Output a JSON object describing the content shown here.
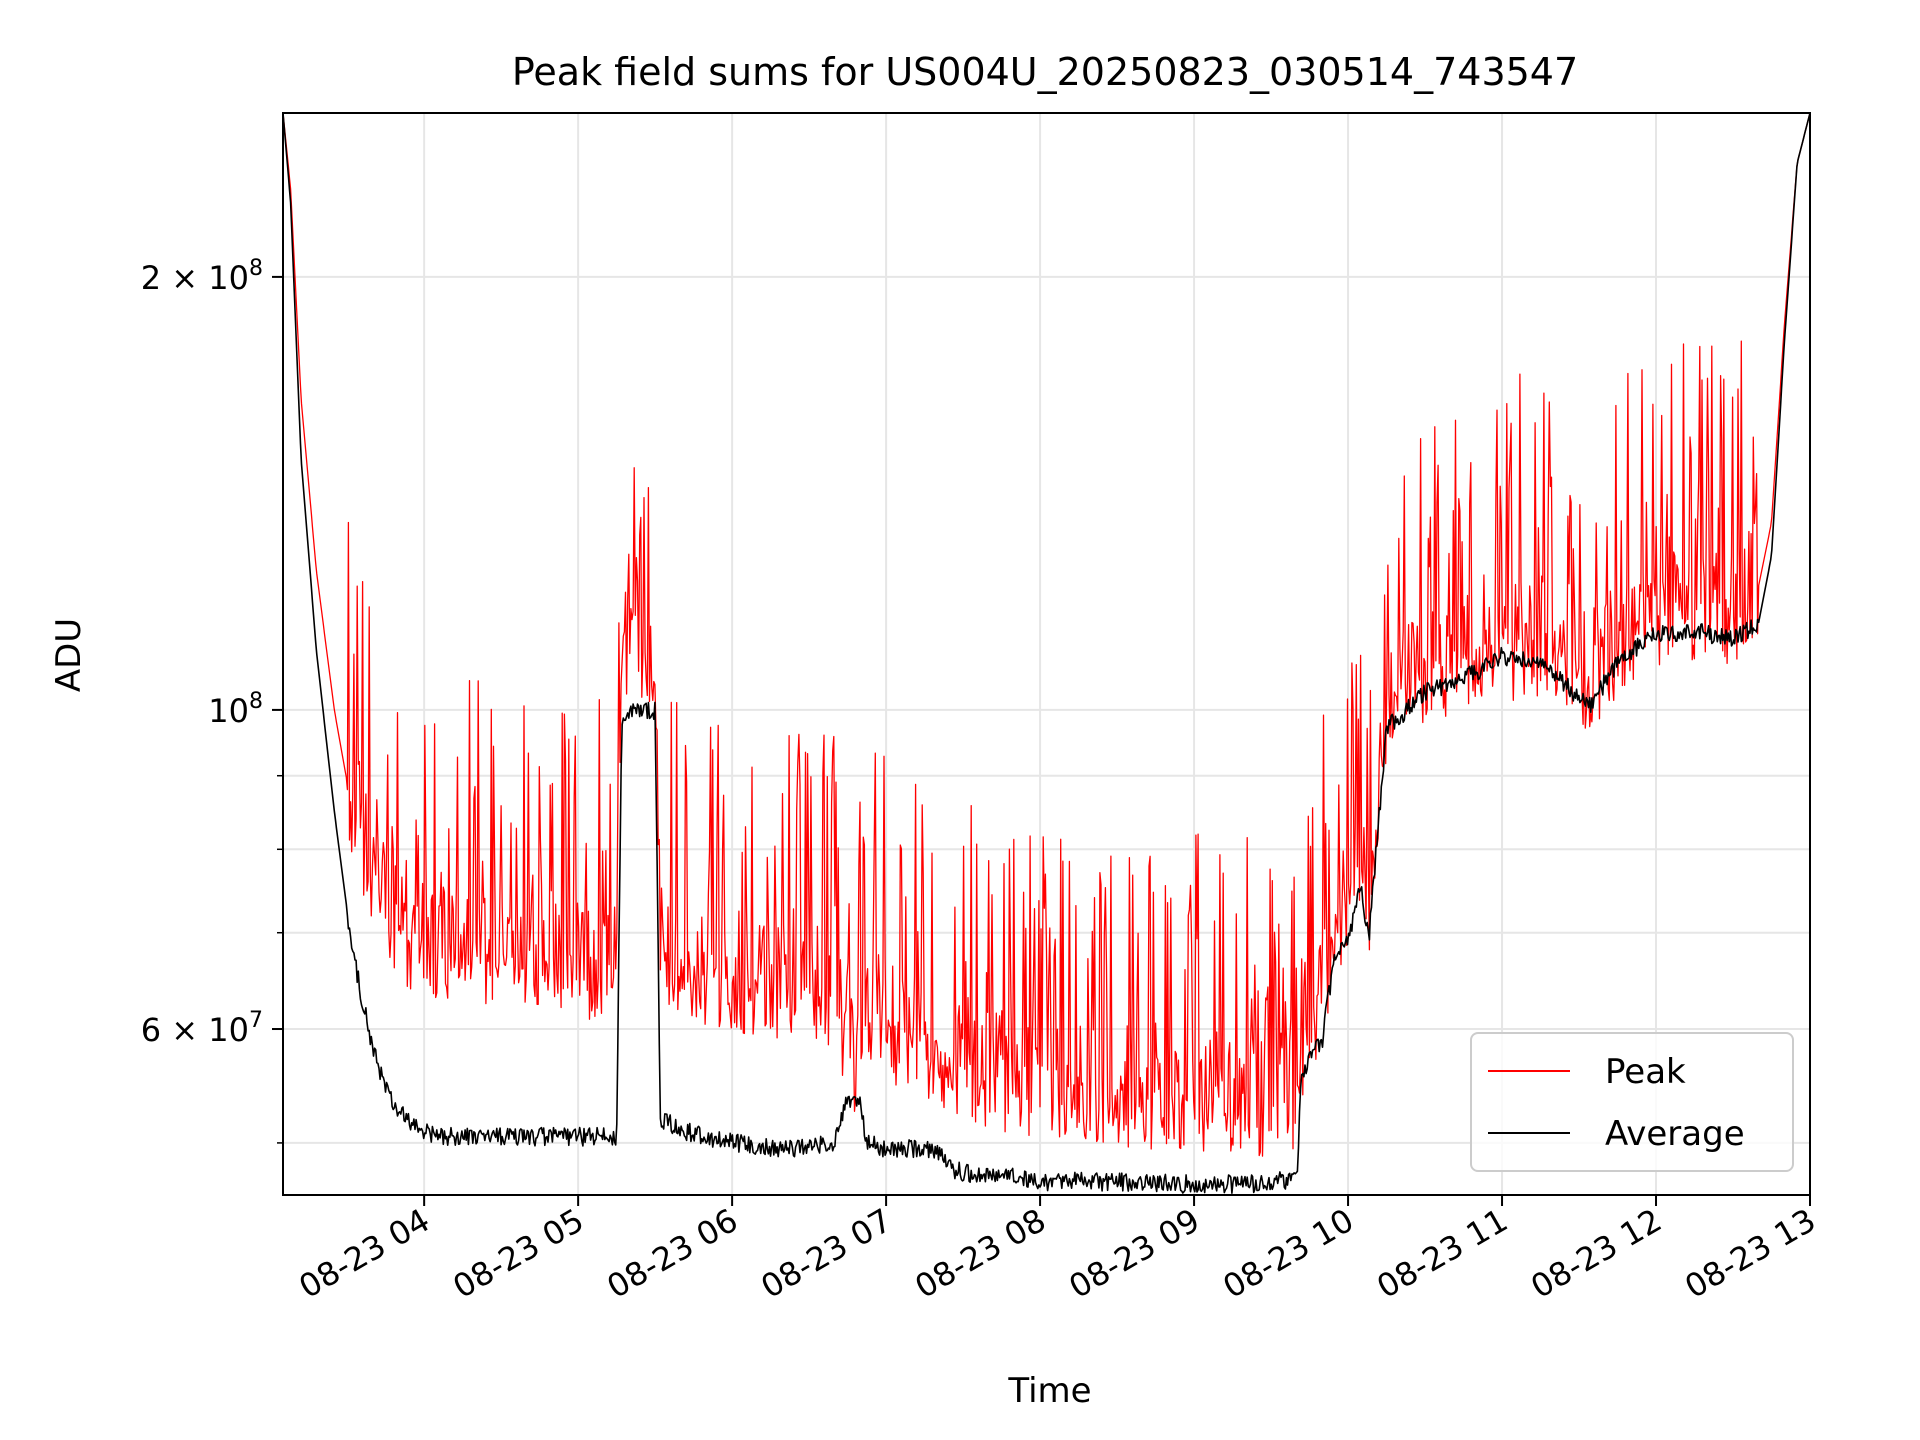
{
  "chart_data": {
    "type": "line",
    "title": "Peak field sums for US004U_20250823_030514_743547",
    "xlabel": "Time",
    "ylabel": "ADU",
    "y_scale": "log",
    "xlim": [
      "2025-08-23 03:05",
      "2025-08-23 13:00"
    ],
    "ylim": [
      46000000,
      260000000
    ],
    "grid": true,
    "legend_position": "lower right",
    "x_ticks": [
      {
        "value": "2025-08-23 04:00",
        "label": "08-23 04"
      },
      {
        "value": "2025-08-23 05:00",
        "label": "08-23 05"
      },
      {
        "value": "2025-08-23 06:00",
        "label": "08-23 06"
      },
      {
        "value": "2025-08-23 07:00",
        "label": "08-23 07"
      },
      {
        "value": "2025-08-23 08:00",
        "label": "08-23 08"
      },
      {
        "value": "2025-08-23 09:00",
        "label": "08-23 09"
      },
      {
        "value": "2025-08-23 10:00",
        "label": "08-23 10"
      },
      {
        "value": "2025-08-23 11:00",
        "label": "08-23 11"
      },
      {
        "value": "2025-08-23 12:00",
        "label": "08-23 12"
      },
      {
        "value": "2025-08-23 13:00",
        "label": "08-23 13"
      }
    ],
    "y_major_ticks": [
      {
        "value": 60000000,
        "mantissa": "6",
        "exponent": "7"
      },
      {
        "value": 100000000,
        "mantissa": "",
        "exponent": "8"
      },
      {
        "value": 200000000,
        "mantissa": "2",
        "exponent": "8"
      }
    ],
    "y_minor_ticks": [
      50000000,
      70000000,
      80000000,
      90000000
    ],
    "series": [
      {
        "name": "Peak",
        "color": "#ff0000",
        "x": [
          "03:05",
          "03:08",
          "03:12",
          "03:18",
          "03:25",
          "03:32",
          "03:40",
          "03:48",
          "03:55",
          "04:05",
          "04:15",
          "04:30",
          "04:45",
          "05:00",
          "05:15",
          "05:17",
          "05:22",
          "05:30",
          "05:32",
          "05:40",
          "06:00",
          "06:20",
          "06:40",
          "06:45",
          "06:50",
          "06:52",
          "07:00",
          "07:20",
          "07:25",
          "07:30",
          "07:45",
          "08:00",
          "08:30",
          "09:00",
          "09:20",
          "09:40",
          "09:42",
          "09:50",
          "09:55",
          "10:00",
          "10:05",
          "10:08",
          "10:15",
          "10:30",
          "10:45",
          "11:00",
          "11:15",
          "11:30",
          "11:35",
          "11:45",
          "12:00",
          "12:15",
          "12:30",
          "12:40",
          "12:45",
          "12:50",
          "12:55",
          "13:00"
        ],
        "y": [
          260000000,
          230000000,
          165000000,
          125000000,
          100000000,
          85000000,
          75000000,
          70000000,
          69000000,
          68000000,
          68000000,
          67000000,
          67000000,
          66000000,
          66000000,
          108000000,
          110000000,
          110000000,
          68000000,
          66000000,
          65000000,
          64000000,
          63000000,
          57000000,
          57000000,
          62000000,
          60000000,
          58000000,
          57000000,
          56000000,
          55000000,
          54000000,
          54000000,
          53000000,
          53000000,
          53500000,
          58000000,
          64000000,
          70000000,
          72000000,
          78000000,
          70000000,
          100000000,
          106000000,
          107000000,
          110000000,
          111000000,
          106000000,
          105000000,
          110000000,
          116000000,
          117000000,
          117000000,
          122000000,
          135000000,
          185000000,
          240000000,
          260000000
        ]
      },
      {
        "name": "Average",
        "color": "#000000",
        "x": [
          "03:05",
          "03:08",
          "03:12",
          "03:18",
          "03:25",
          "03:32",
          "03:40",
          "03:48",
          "03:55",
          "04:05",
          "04:15",
          "04:30",
          "04:45",
          "05:00",
          "05:15",
          "05:17",
          "05:22",
          "05:30",
          "05:32",
          "05:40",
          "06:00",
          "06:20",
          "06:40",
          "06:45",
          "06:50",
          "06:52",
          "07:00",
          "07:20",
          "07:25",
          "07:30",
          "07:45",
          "08:00",
          "08:30",
          "09:00",
          "09:20",
          "09:40",
          "09:42",
          "09:50",
          "09:55",
          "10:00",
          "10:05",
          "10:08",
          "10:15",
          "10:30",
          "10:45",
          "11:00",
          "11:15",
          "11:30",
          "11:35",
          "11:45",
          "12:00",
          "12:15",
          "12:30",
          "12:40",
          "12:45",
          "12:50",
          "12:55",
          "13:00"
        ],
        "y": [
          260000000,
          225000000,
          150000000,
          110000000,
          85000000,
          68000000,
          58000000,
          53000000,
          51500000,
          50500000,
          50500000,
          50500000,
          50500000,
          50500000,
          50500000,
          98000000,
          100000000,
          100000000,
          52000000,
          51000000,
          50000000,
          49500000,
          50000000,
          53500000,
          53500000,
          50000000,
          49500000,
          49500000,
          48000000,
          47700000,
          47500000,
          47000000,
          47000000,
          46800000,
          46800000,
          47200000,
          56000000,
          59000000,
          68000000,
          69000000,
          76000000,
          69000000,
          97000000,
          103000000,
          105000000,
          109000000,
          108000000,
          102000000,
          101000000,
          108000000,
          113000000,
          113500000,
          112000000,
          115000000,
          128000000,
          180000000,
          240000000,
          260000000
        ]
      }
    ]
  }
}
